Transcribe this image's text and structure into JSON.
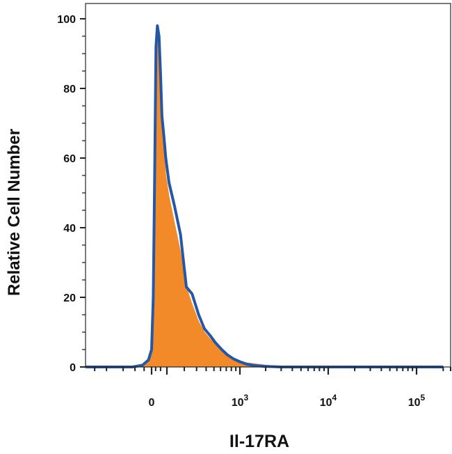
{
  "chart_data": {
    "type": "area",
    "title": "",
    "xlabel": "Il-17RA",
    "ylabel": "Relative Cell Number",
    "x_scale": "biexponential",
    "xlim": [
      -400,
      200000
    ],
    "ylim": [
      0,
      100
    ],
    "grid": false,
    "legend": "none",
    "y_ticks": [
      {
        "value": 0,
        "label": "0"
      },
      {
        "value": 20,
        "label": "20"
      },
      {
        "value": 40,
        "label": "40"
      },
      {
        "value": 60,
        "label": "60"
      },
      {
        "value": 80,
        "label": "80"
      },
      {
        "value": 100,
        "label": "100"
      }
    ],
    "x_ticks": [
      {
        "value": 0,
        "label": "0",
        "exp": ""
      },
      {
        "value": 1000,
        "label": "10",
        "exp": "3"
      },
      {
        "value": 10000,
        "label": "10",
        "exp": "4"
      },
      {
        "value": 100000,
        "label": "10",
        "exp": "5"
      }
    ],
    "series": [
      {
        "style": "filled",
        "color": "#f28a2a",
        "x": [
          -400,
          -60,
          -25,
          -8,
          0,
          8,
          15,
          22,
          30,
          40,
          50,
          60,
          75,
          90,
          110,
          140,
          175,
          215,
          260,
          320,
          380,
          450,
          520,
          620,
          720,
          850,
          1000,
          1200,
          1500,
          1900,
          2400,
          3000,
          3800,
          5000,
          8000,
          20000,
          200000
        ],
        "values": [
          0,
          0,
          0.5,
          2,
          5,
          20,
          55,
          90,
          97,
          93,
          80,
          67,
          62,
          55,
          49,
          41,
          33,
          23,
          18,
          13,
          10,
          8,
          6.5,
          5,
          3.5,
          2.5,
          1.8,
          1.2,
          0.9,
          0.6,
          0.3,
          0.1,
          0,
          0,
          0,
          0,
          0
        ]
      },
      {
        "style": "line",
        "color": "#2457a6",
        "x": [
          -400,
          -60,
          -25,
          -8,
          0,
          8,
          15,
          22,
          30,
          40,
          50,
          60,
          75,
          90,
          110,
          140,
          175,
          215,
          260,
          320,
          380,
          450,
          520,
          620,
          720,
          850,
          1000,
          1200,
          1500,
          1900,
          2400,
          3000,
          3800,
          5000,
          8000,
          20000,
          200000
        ],
        "values": [
          0,
          0,
          0.5,
          2,
          5,
          20,
          55,
          92,
          98,
          95,
          84,
          72,
          66,
          60,
          53,
          46,
          38,
          23,
          21,
          15,
          11,
          9,
          7,
          5,
          3.5,
          2.3,
          1.5,
          0.8,
          0.4,
          0.2,
          0.1,
          0,
          0,
          0,
          0,
          0,
          0
        ]
      }
    ]
  }
}
